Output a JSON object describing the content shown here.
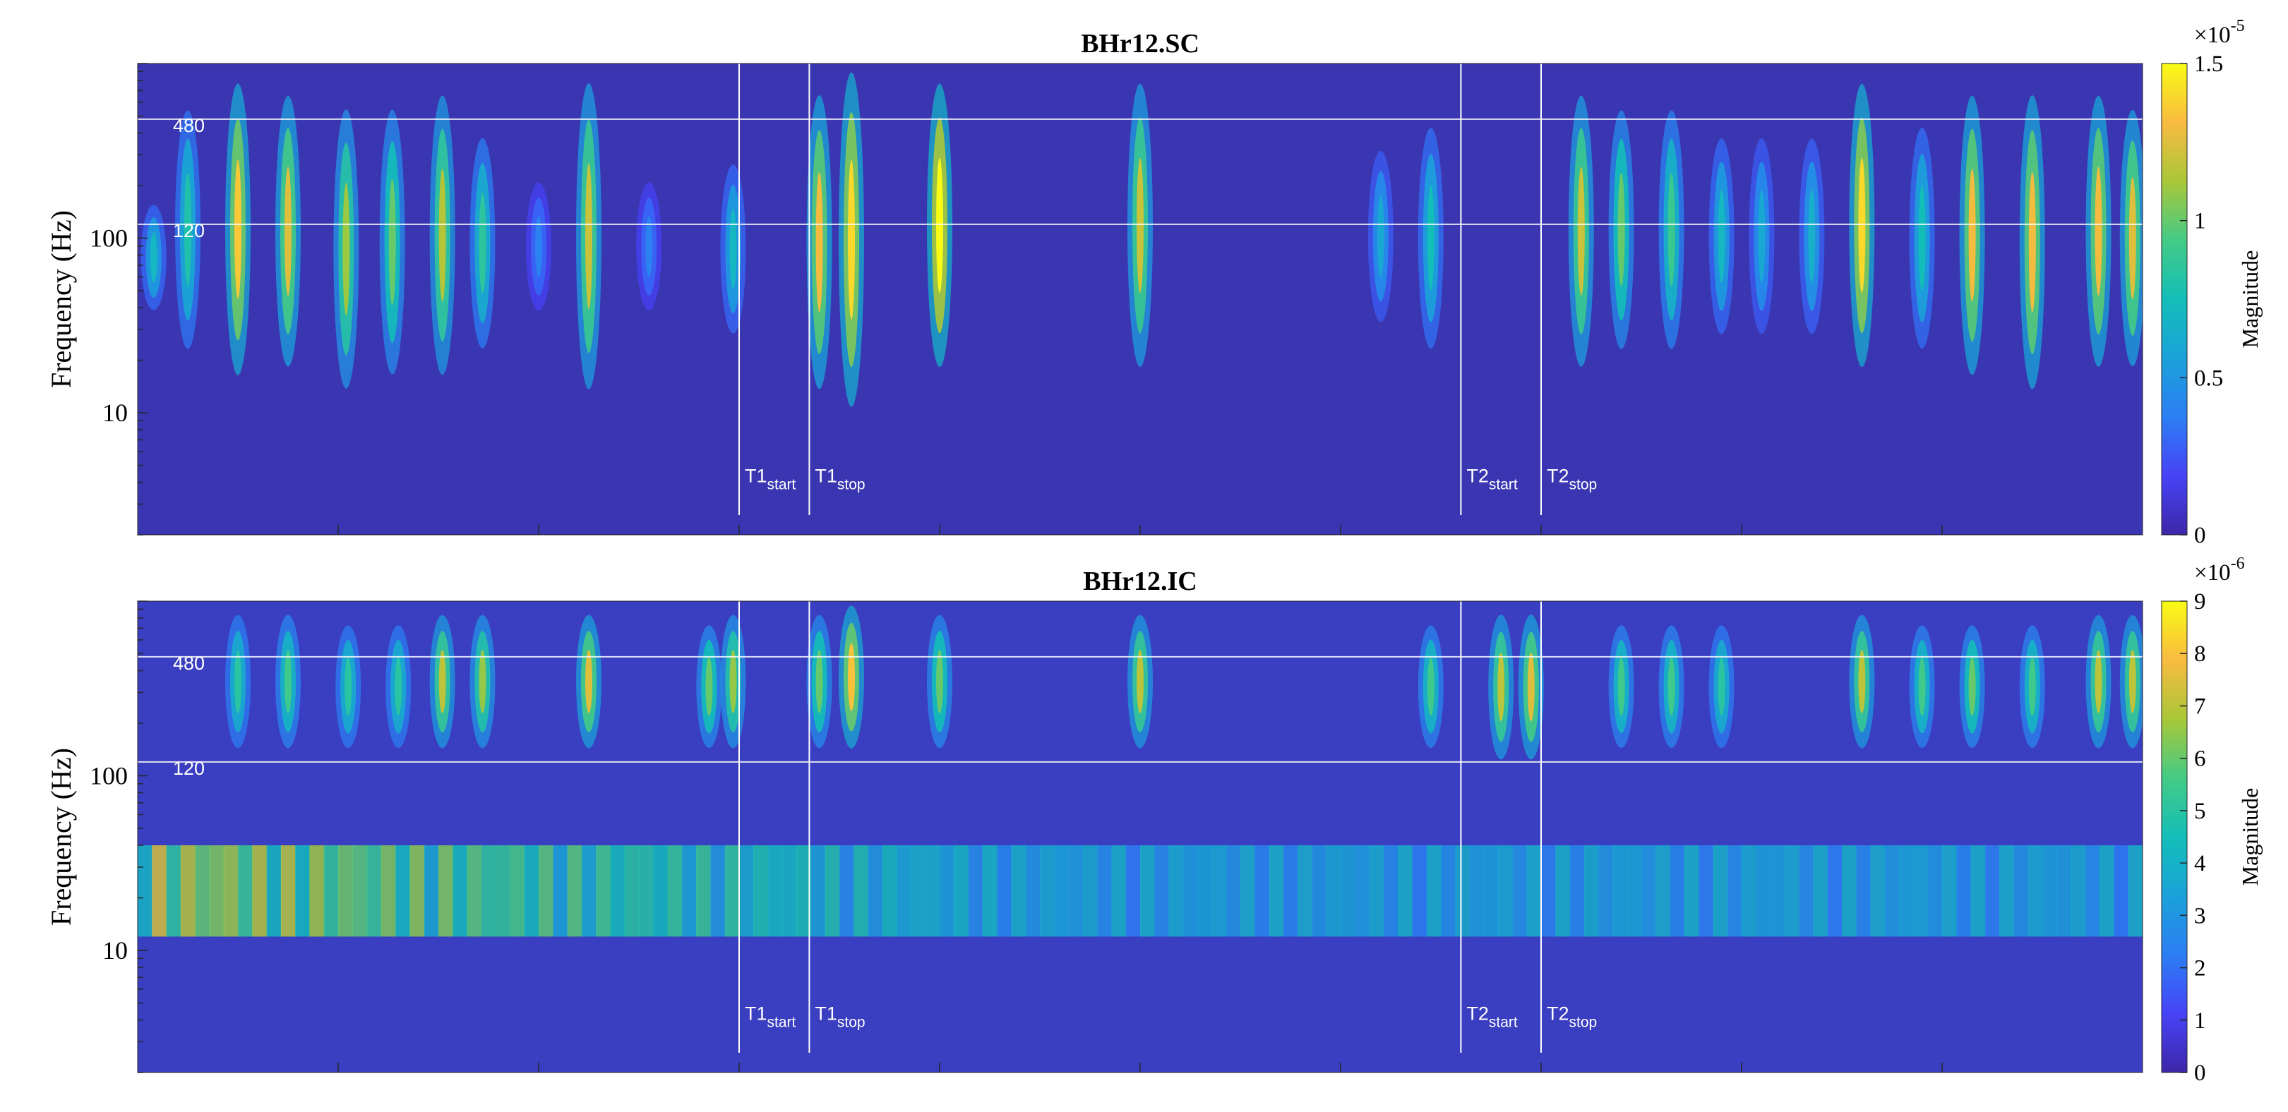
{
  "chart_data": [
    {
      "type": "heatmap",
      "title": "BHr12.SC",
      "ylabel": "Frequency (Hz)",
      "yscale": "log",
      "ylim": [
        2,
        1000
      ],
      "yticks": [
        {
          "value": 10,
          "label": "10"
        },
        {
          "value": 100,
          "label": "100"
        }
      ],
      "colorbar": {
        "label": "Magnitude",
        "scale_exponent": "×10",
        "scale_power": "-5",
        "ticks": [
          {
            "value": 0,
            "label": "0"
          },
          {
            "value": 0.5,
            "label": "0.5"
          },
          {
            "value": 1,
            "label": "1"
          },
          {
            "value": 1.5,
            "label": "1.5"
          }
        ],
        "range": [
          0,
          1.5
        ]
      },
      "colormap": "parula",
      "reference_lines": [
        {
          "freq": 480,
          "label": "480"
        },
        {
          "freq": 120,
          "label": "120"
        }
      ],
      "markers": [
        {
          "t": 0.3,
          "base": "T1",
          "sub": "start"
        },
        {
          "t": 0.335,
          "base": "T1",
          "sub": "stop"
        },
        {
          "t": 0.66,
          "base": "T2",
          "sub": "start"
        },
        {
          "t": 0.7,
          "base": "T2",
          "sub": "stop"
        }
      ],
      "bursts": [
        {
          "t": 0.008,
          "lo": 40,
          "hi": 150,
          "amp": 0.7
        },
        {
          "t": 0.025,
          "lo": 25,
          "hi": 500,
          "amp": 0.8
        },
        {
          "t": 0.05,
          "lo": 18,
          "hi": 700,
          "amp": 1.35
        },
        {
          "t": 0.075,
          "lo": 20,
          "hi": 600,
          "amp": 1.25
        },
        {
          "t": 0.104,
          "lo": 15,
          "hi": 500,
          "amp": 1.1
        },
        {
          "t": 0.127,
          "lo": 18,
          "hi": 500,
          "amp": 1.0
        },
        {
          "t": 0.152,
          "lo": 18,
          "hi": 600,
          "amp": 1.15
        },
        {
          "t": 0.172,
          "lo": 25,
          "hi": 350,
          "amp": 0.85
        },
        {
          "t": 0.2,
          "lo": 40,
          "hi": 200,
          "amp": 0.4
        },
        {
          "t": 0.225,
          "lo": 15,
          "hi": 700,
          "amp": 1.2
        },
        {
          "t": 0.255,
          "lo": 40,
          "hi": 200,
          "amp": 0.4
        },
        {
          "t": 0.297,
          "lo": 30,
          "hi": 250,
          "amp": 0.7
        },
        {
          "t": 0.34,
          "lo": 15,
          "hi": 600,
          "amp": 1.3
        },
        {
          "t": 0.356,
          "lo": 12,
          "hi": 800,
          "amp": 1.4
        },
        {
          "t": 0.4,
          "lo": 20,
          "hi": 700,
          "amp": 1.5
        },
        {
          "t": 0.5,
          "lo": 20,
          "hi": 700,
          "amp": 1.2
        },
        {
          "t": 0.62,
          "lo": 35,
          "hi": 300,
          "amp": 0.6
        },
        {
          "t": 0.645,
          "lo": 25,
          "hi": 400,
          "amp": 0.75
        },
        {
          "t": 0.72,
          "lo": 20,
          "hi": 600,
          "amp": 1.2
        },
        {
          "t": 0.74,
          "lo": 25,
          "hi": 500,
          "amp": 1.0
        },
        {
          "t": 0.765,
          "lo": 25,
          "hi": 500,
          "amp": 0.9
        },
        {
          "t": 0.79,
          "lo": 30,
          "hi": 350,
          "amp": 0.7
        },
        {
          "t": 0.81,
          "lo": 30,
          "hi": 350,
          "amp": 0.6
        },
        {
          "t": 0.835,
          "lo": 30,
          "hi": 350,
          "amp": 0.65
        },
        {
          "t": 0.86,
          "lo": 20,
          "hi": 700,
          "amp": 1.4
        },
        {
          "t": 0.89,
          "lo": 25,
          "hi": 400,
          "amp": 0.75
        },
        {
          "t": 0.915,
          "lo": 18,
          "hi": 600,
          "amp": 1.3
        },
        {
          "t": 0.945,
          "lo": 15,
          "hi": 600,
          "amp": 1.3
        },
        {
          "t": 0.978,
          "lo": 20,
          "hi": 600,
          "amp": 1.3
        },
        {
          "t": 0.995,
          "lo": 20,
          "hi": 500,
          "amp": 1.25
        }
      ]
    },
    {
      "type": "heatmap",
      "title": "BHr12.IC",
      "ylabel": "Frequency (Hz)",
      "yscale": "log",
      "ylim": [
        2,
        1000
      ],
      "yticks": [
        {
          "value": 10,
          "label": "10"
        },
        {
          "value": 100,
          "label": "100"
        }
      ],
      "colorbar": {
        "label": "Magnitude",
        "scale_exponent": "×10",
        "scale_power": "-6",
        "ticks": [
          {
            "value": 0,
            "label": "0"
          },
          {
            "value": 1,
            "label": "1"
          },
          {
            "value": 2,
            "label": "2"
          },
          {
            "value": 3,
            "label": "3"
          },
          {
            "value": 4,
            "label": "4"
          },
          {
            "value": 5,
            "label": "5"
          },
          {
            "value": 6,
            "label": "6"
          },
          {
            "value": 7,
            "label": "7"
          },
          {
            "value": 8,
            "label": "8"
          },
          {
            "value": 9,
            "label": "9"
          }
        ],
        "range": [
          0,
          9
        ]
      },
      "colormap": "parula",
      "reference_lines": [
        {
          "freq": 480,
          "label": "480"
        },
        {
          "freq": 120,
          "label": "120"
        }
      ],
      "markers": [
        {
          "t": 0.3,
          "base": "T1",
          "sub": "start"
        },
        {
          "t": 0.335,
          "base": "T1",
          "sub": "stop"
        },
        {
          "t": 0.66,
          "base": "T2",
          "sub": "start"
        },
        {
          "t": 0.7,
          "base": "T2",
          "sub": "stop"
        }
      ],
      "bursts": [
        {
          "t": 0.05,
          "lo": 150,
          "hi": 800,
          "amp": 5.0
        },
        {
          "t": 0.075,
          "lo": 150,
          "hi": 800,
          "amp": 5.5
        },
        {
          "t": 0.105,
          "lo": 150,
          "hi": 700,
          "amp": 5.0
        },
        {
          "t": 0.13,
          "lo": 150,
          "hi": 700,
          "amp": 5.0
        },
        {
          "t": 0.152,
          "lo": 150,
          "hi": 800,
          "amp": 7.0
        },
        {
          "t": 0.172,
          "lo": 150,
          "hi": 800,
          "amp": 6.5
        },
        {
          "t": 0.225,
          "lo": 150,
          "hi": 800,
          "amp": 7.5
        },
        {
          "t": 0.285,
          "lo": 150,
          "hi": 700,
          "amp": 6.0
        },
        {
          "t": 0.297,
          "lo": 150,
          "hi": 800,
          "amp": 6.5
        },
        {
          "t": 0.34,
          "lo": 150,
          "hi": 800,
          "amp": 6.0
        },
        {
          "t": 0.356,
          "lo": 150,
          "hi": 900,
          "amp": 8.0
        },
        {
          "t": 0.4,
          "lo": 150,
          "hi": 800,
          "amp": 6.0
        },
        {
          "t": 0.5,
          "lo": 150,
          "hi": 800,
          "amp": 7.0
        },
        {
          "t": 0.645,
          "lo": 150,
          "hi": 700,
          "amp": 5.5
        },
        {
          "t": 0.68,
          "lo": 130,
          "hi": 800,
          "amp": 7.0
        },
        {
          "t": 0.695,
          "lo": 130,
          "hi": 800,
          "amp": 7.5
        },
        {
          "t": 0.74,
          "lo": 150,
          "hi": 700,
          "amp": 5.5
        },
        {
          "t": 0.765,
          "lo": 150,
          "hi": 700,
          "amp": 5.5
        },
        {
          "t": 0.79,
          "lo": 150,
          "hi": 700,
          "amp": 5.0
        },
        {
          "t": 0.86,
          "lo": 150,
          "hi": 800,
          "amp": 7.0
        },
        {
          "t": 0.89,
          "lo": 150,
          "hi": 700,
          "amp": 5.5
        },
        {
          "t": 0.915,
          "lo": 150,
          "hi": 700,
          "amp": 6.0
        },
        {
          "t": 0.945,
          "lo": 150,
          "hi": 700,
          "amp": 5.5
        },
        {
          "t": 0.978,
          "lo": 150,
          "hi": 800,
          "amp": 7.0
        },
        {
          "t": 0.995,
          "lo": 150,
          "hi": 800,
          "amp": 7.0
        }
      ],
      "low_band": {
        "lo": 12,
        "hi": 40,
        "amp_early": 7.5,
        "amp_late": 4.0
      }
    }
  ]
}
